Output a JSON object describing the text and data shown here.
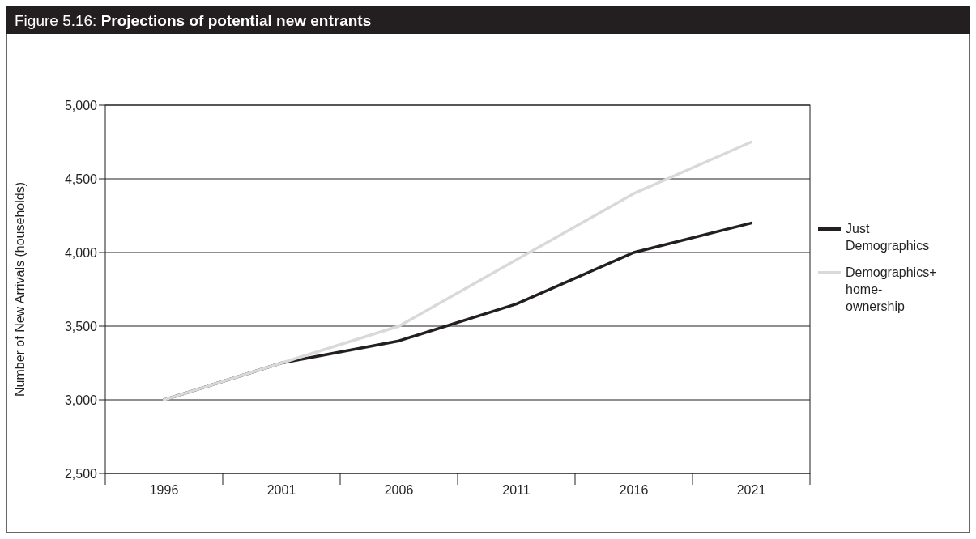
{
  "chart_data": {
    "type": "line",
    "title": "Figure 5.16: Projections of potential new entrants",
    "ylabel": "Number of New Arrivals (households)",
    "categories": [
      "1996",
      "2001",
      "2006",
      "2011",
      "2016",
      "2021"
    ],
    "series": [
      {
        "name": "Just Demographics",
        "color": "#231f20",
        "values": [
          3000,
          3250,
          3400,
          3650,
          4000,
          4200
        ]
      },
      {
        "name": "Demographics+ home-ownership",
        "color": "#d9d9d9",
        "values": [
          3000,
          3250,
          3500,
          3950,
          4400,
          4750
        ]
      }
    ],
    "ylim": [
      2500,
      5000
    ],
    "yticks": [
      {
        "value": 2500,
        "label": "2,500"
      },
      {
        "value": 3000,
        "label": "3,000"
      },
      {
        "value": 3500,
        "label": "3,500"
      },
      {
        "value": 4000,
        "label": "4,000"
      },
      {
        "value": 4500,
        "label": "4,500"
      },
      {
        "value": 5000,
        "label": "5,000"
      }
    ],
    "grid": "y",
    "legend": "right",
    "marker": "none",
    "line_style": "solid"
  }
}
